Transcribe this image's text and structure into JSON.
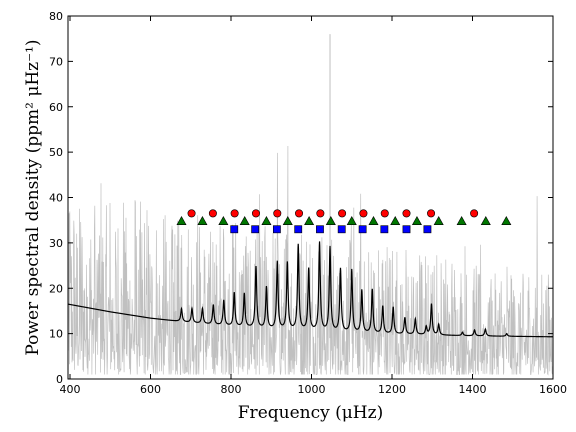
{
  "chart_data": {
    "type": "line",
    "xlabel": "Frequency (μHz)",
    "ylabel": "Power spectral density (ppm² μHz⁻¹)",
    "xlim": [
      395,
      1600
    ],
    "ylim": [
      0,
      80
    ],
    "x_ticks": [
      400,
      600,
      800,
      1000,
      1200,
      1400,
      1600
    ],
    "y_ticks": [
      0,
      10,
      20,
      30,
      40,
      50,
      60,
      70,
      80
    ],
    "grid": false,
    "legend": "none",
    "colors": {
      "raw_spectrum": "#c0c0c0",
      "smoothed_fit": "#000000",
      "marker_circle": "#ff0000",
      "marker_square": "#0000ff",
      "marker_triangle": "#007700"
    },
    "series": [
      {
        "kind": "raw_spectrum",
        "description_values": {
          "noise_floor_low": 1,
          "noise_envelope_high_at_400": 42,
          "noise_envelope_high_at_1600": 23,
          "tallest_peak": {
            "x": 1046,
            "y": 76
          }
        }
      },
      {
        "kind": "smoothed_fit",
        "background": [
          [
            395,
            16.5
          ],
          [
            500,
            14.8
          ],
          [
            600,
            13.4
          ],
          [
            700,
            12.4
          ],
          [
            800,
            11.6
          ],
          [
            900,
            11.0
          ],
          [
            1000,
            10.6
          ],
          [
            1100,
            10.2
          ],
          [
            1200,
            9.9
          ],
          [
            1300,
            9.7
          ],
          [
            1400,
            9.5
          ],
          [
            1500,
            9.4
          ],
          [
            1600,
            9.3
          ]
        ],
        "peaks": [
          [
            677,
            15.5
          ],
          [
            703,
            15.5
          ],
          [
            729,
            15.5
          ],
          [
            756,
            16.3
          ],
          [
            782,
            17.3
          ],
          [
            808,
            19.0
          ],
          [
            833,
            18.8
          ],
          [
            862,
            24.7
          ],
          [
            888,
            20.2
          ],
          [
            915,
            25.8
          ],
          [
            940,
            25.6
          ],
          [
            967,
            29.5
          ],
          [
            993,
            24.2
          ],
          [
            1020,
            30.0
          ],
          [
            1046,
            29.0
          ],
          [
            1072,
            24.2
          ],
          [
            1100,
            24.0
          ],
          [
            1125,
            19.5
          ],
          [
            1151,
            19.7
          ],
          [
            1177,
            16.0
          ],
          [
            1203,
            15.8
          ],
          [
            1232,
            13.5
          ],
          [
            1258,
            13.2
          ],
          [
            1285,
            11.5
          ],
          [
            1298,
            16.5
          ],
          [
            1316,
            12.0
          ],
          [
            1375,
            10.3
          ],
          [
            1405,
            10.8
          ],
          [
            1432,
            11.0
          ],
          [
            1485,
            10.0
          ]
        ]
      }
    ],
    "markers": {
      "circles_y": 36.5,
      "circles_x": [
        702,
        755,
        809,
        862,
        915,
        969,
        1022,
        1076,
        1129,
        1182,
        1236,
        1297,
        1404
      ],
      "squares_y": 33.0,
      "squares_x": [
        808,
        860,
        914,
        967,
        1021,
        1075,
        1127,
        1181,
        1236,
        1288
      ],
      "triangles_y": 34.8,
      "triangles_x": [
        677,
        729,
        781,
        834,
        888,
        941,
        994,
        1048,
        1100,
        1154,
        1208,
        1262,
        1316,
        1373,
        1433,
        1484
      ]
    }
  }
}
